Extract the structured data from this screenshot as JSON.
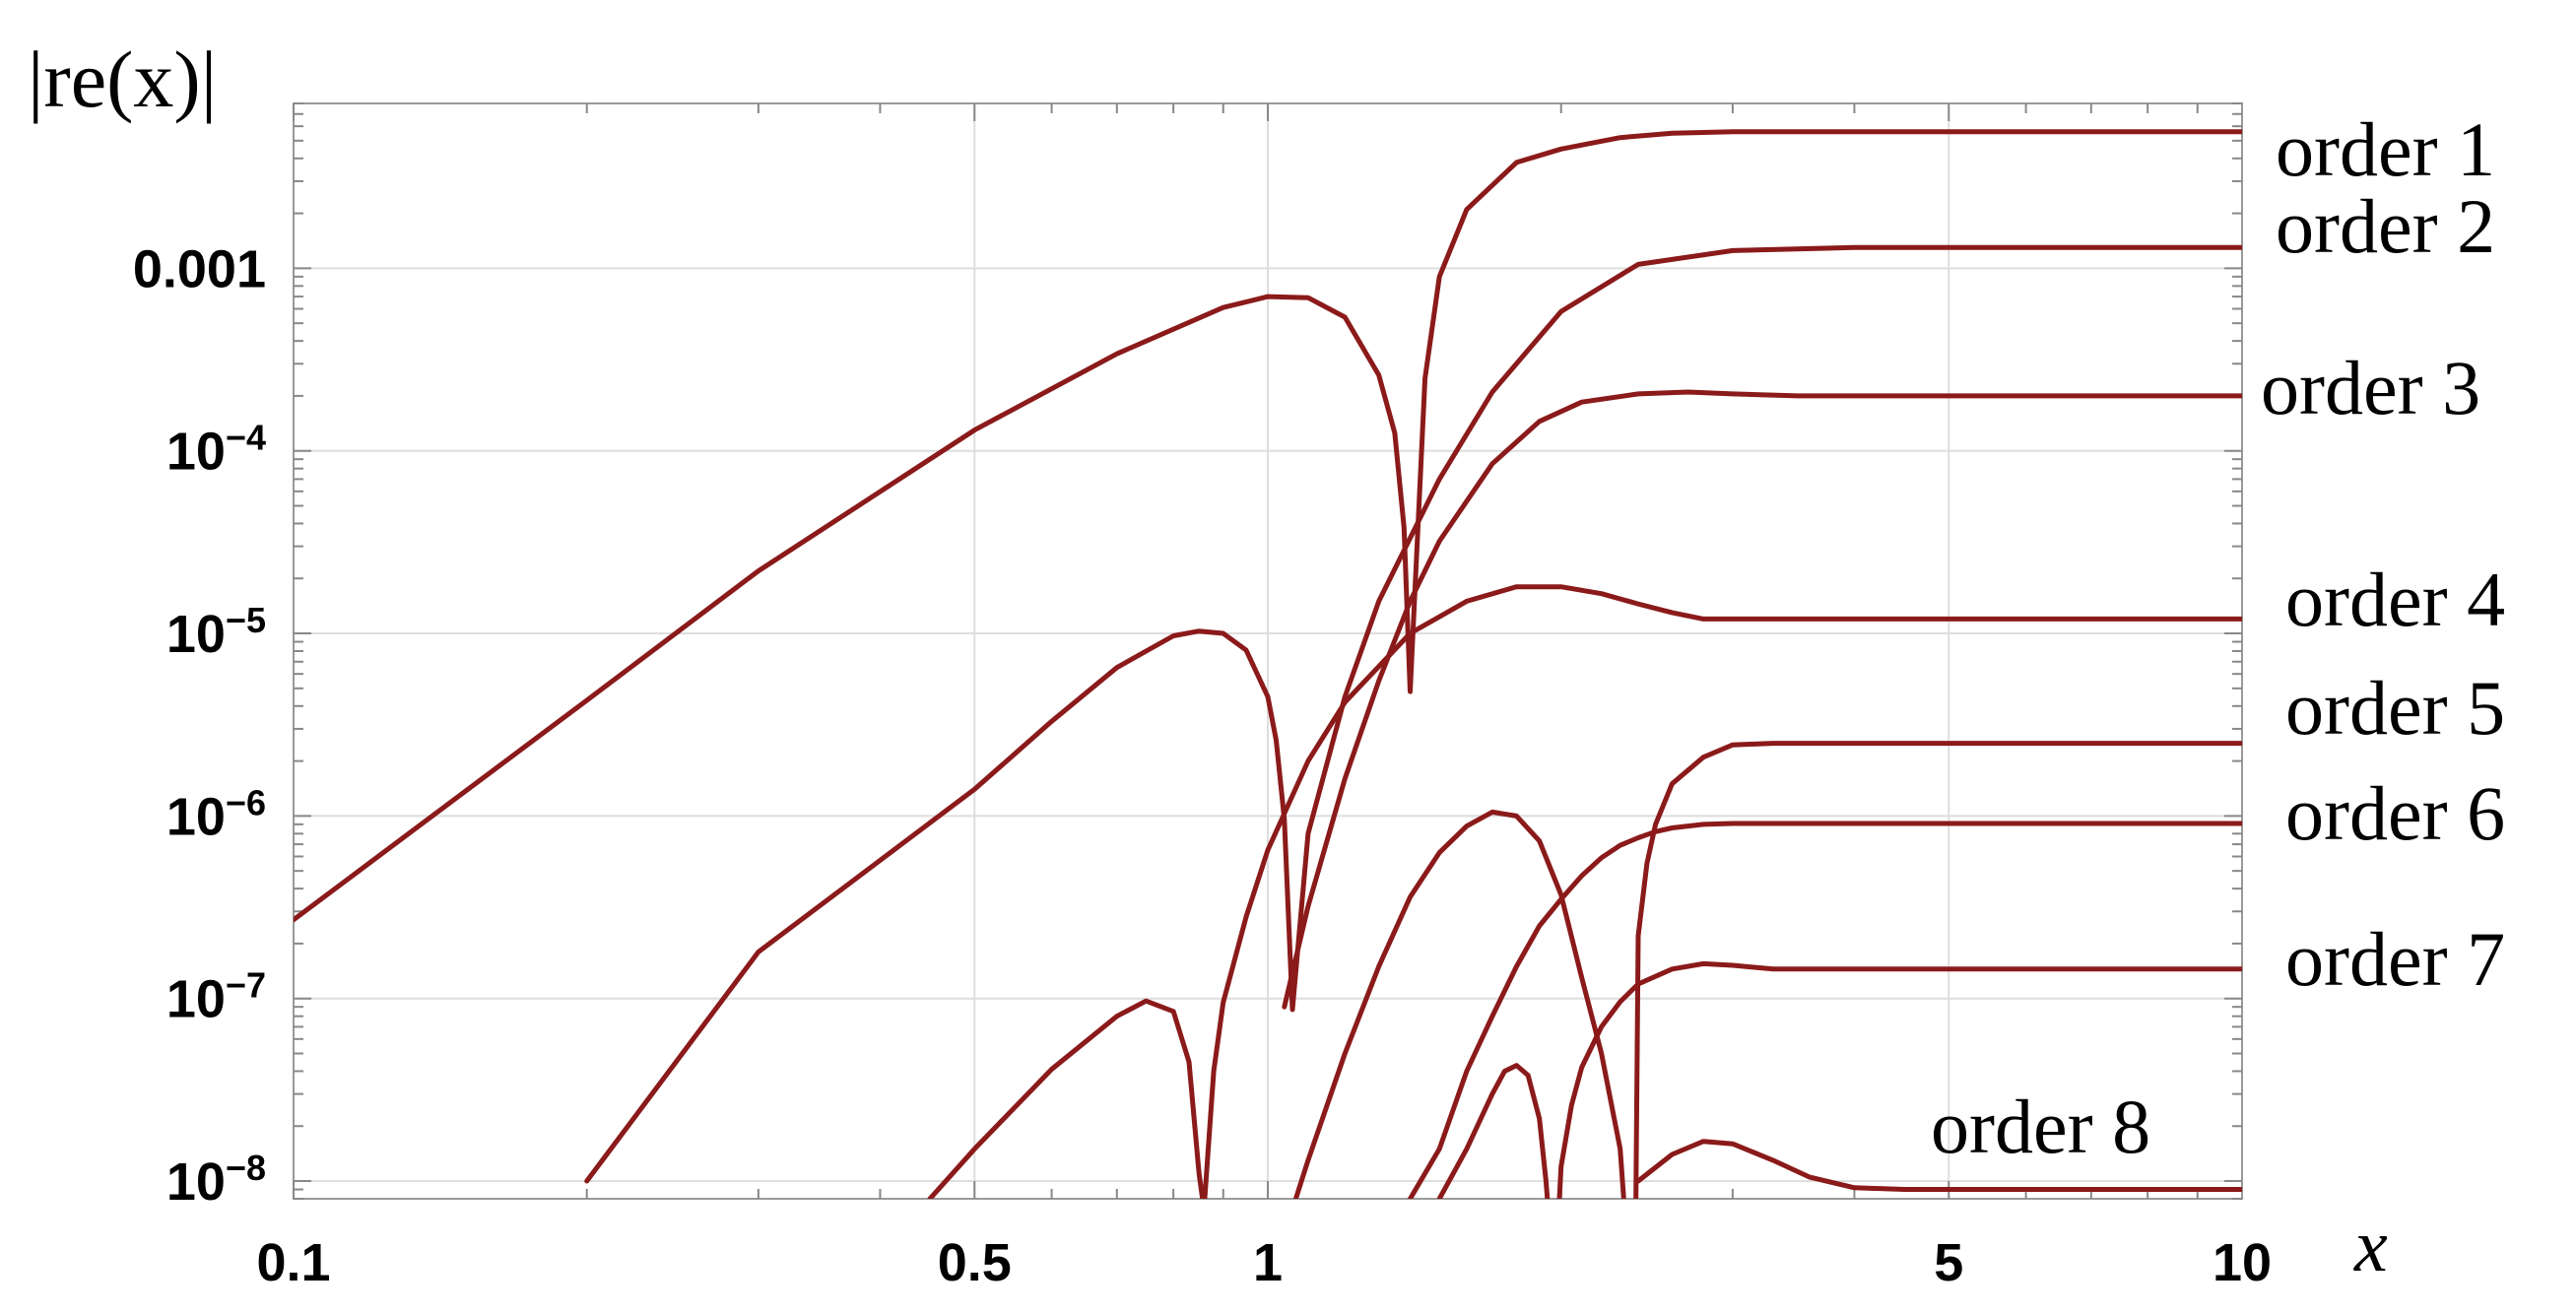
{
  "chart_data": {
    "type": "line",
    "ylabel": "|re(x)|",
    "xlabel": "x",
    "x_scale": "log",
    "y_scale": "log",
    "xlim": [
      0.1,
      10
    ],
    "ylim": [
      8e-09,
      0.008
    ],
    "grid": true,
    "line_color": "#8b1a1a",
    "x_ticks": [
      {
        "value": 0.1,
        "label": "0.1"
      },
      {
        "value": 0.5,
        "label": "0.5"
      },
      {
        "value": 1,
        "label": "1"
      },
      {
        "value": 5,
        "label": "5"
      },
      {
        "value": 10,
        "label": "10"
      }
    ],
    "y_ticks": [
      {
        "value": 0.001,
        "base": "0.001",
        "exp": ""
      },
      {
        "value": 0.0001,
        "base": "10",
        "exp": "−4"
      },
      {
        "value": 1e-05,
        "base": "10",
        "exp": "−5"
      },
      {
        "value": 1e-06,
        "base": "10",
        "exp": "−6"
      },
      {
        "value": 1e-07,
        "base": "10",
        "exp": "−7"
      },
      {
        "value": 1e-08,
        "base": "10",
        "exp": "−8"
      }
    ],
    "series": [
      {
        "name": "order 1",
        "x": [
          0.1,
          0.2,
          0.3,
          0.5,
          0.7,
          0.9,
          1.0,
          1.1,
          1.2,
          1.3,
          1.35,
          1.38,
          1.4,
          1.45,
          1.5,
          1.6,
          1.8,
          2.0,
          2.3,
          2.6,
          3.0,
          4,
          5,
          7,
          10
        ],
        "y": [
          2.7e-07,
          4.3e-06,
          2.2e-05,
          0.00013,
          0.00034,
          0.00061,
          0.0007,
          0.00069,
          0.00054,
          0.00026,
          0.000125,
          3.8e-05,
          4.8e-06,
          0.00025,
          0.0009,
          0.0021,
          0.0038,
          0.0045,
          0.0052,
          0.0055,
          0.0056,
          0.0056,
          0.0056,
          0.0056,
          0.0056
        ]
      },
      {
        "name": "order 2",
        "x": [
          0.2,
          0.3,
          0.5,
          0.6,
          0.7,
          0.8,
          0.85,
          0.9,
          0.95,
          1.0,
          1.02,
          1.04,
          1.06,
          1.1,
          1.2,
          1.3,
          1.5,
          1.7,
          2.0,
          2.4,
          3.0,
          4,
          5,
          7,
          10
        ],
        "y": [
          1e-08,
          1.8e-07,
          1.4e-06,
          3.3e-06,
          6.5e-06,
          9.7e-06,
          1.03e-05,
          1e-05,
          8.1e-06,
          4.5e-06,
          2.6e-06,
          9.6e-07,
          8.7e-08,
          8e-07,
          4.5e-06,
          1.5e-05,
          7e-05,
          0.00021,
          0.00058,
          0.00105,
          0.00125,
          0.0013,
          0.0013,
          0.0013,
          0.0013
        ]
      },
      {
        "name": "order 3",
        "x": [
          1.04,
          1.1,
          1.2,
          1.3,
          1.4,
          1.5,
          1.7,
          1.9,
          2.1,
          2.4,
          2.7,
          3.0,
          3.5,
          4,
          5,
          7,
          10
        ],
        "y": [
          9e-08,
          3.2e-07,
          1.6e-06,
          5.5e-06,
          1.5e-05,
          3.2e-05,
          8.5e-05,
          0.000145,
          0.000185,
          0.000205,
          0.00021,
          0.000205,
          0.0002,
          0.0002,
          0.0002,
          0.0002,
          0.0002
        ]
      },
      {
        "name": "order 4",
        "x": [
          0.45,
          0.5,
          0.6,
          0.7,
          0.75,
          0.8,
          0.83,
          0.85,
          0.86,
          0.88,
          0.9,
          0.95,
          1.0,
          1.1,
          1.2,
          1.4,
          1.6,
          1.8,
          2.0,
          2.2,
          2.4,
          2.6,
          2.8,
          3.0,
          3.3,
          3.6,
          4,
          5,
          7,
          10
        ],
        "y": [
          8e-09,
          1.5e-08,
          4.1e-08,
          8e-08,
          9.7e-08,
          8.5e-08,
          4.5e-08,
          1.1e-08,
          7e-09,
          4e-08,
          9.5e-08,
          2.8e-07,
          6.5e-07,
          2e-06,
          4.2e-06,
          1e-05,
          1.5e-05,
          1.8e-05,
          1.8e-05,
          1.65e-05,
          1.45e-05,
          1.3e-05,
          1.2e-05,
          1.2e-05,
          1.2e-05,
          1.2e-05,
          1.2e-05,
          1.2e-05,
          1.2e-05,
          1.2e-05
        ]
      },
      {
        "name": "order 5",
        "x": [
          1.06,
          1.1,
          1.2,
          1.3,
          1.4,
          1.5,
          1.6,
          1.7,
          1.8,
          1.9,
          2.0,
          2.1,
          2.2,
          2.3,
          2.35,
          2.38,
          2.4,
          2.45,
          2.5,
          2.6,
          2.8,
          3.0,
          3.3,
          4,
          5,
          7,
          10
        ],
        "y": [
          7e-09,
          1.3e-08,
          5e-08,
          1.5e-07,
          3.6e-07,
          6.3e-07,
          8.8e-07,
          1.05e-06,
          1e-06,
          7.3e-07,
          3.7e-07,
          1.3e-07,
          5e-08,
          1.5e-08,
          3e-09,
          1.3e-09,
          2.2e-07,
          5.5e-07,
          9e-07,
          1.5e-06,
          2.1e-06,
          2.45e-06,
          2.5e-06,
          2.5e-06,
          2.5e-06,
          2.5e-06,
          2.5e-06
        ]
      },
      {
        "name": "order 6",
        "x": [
          1.4,
          1.5,
          1.6,
          1.7,
          1.8,
          1.9,
          2.0,
          2.1,
          2.2,
          2.3,
          2.4,
          2.5,
          2.6,
          2.8,
          3.0,
          3.3,
          3.6,
          4,
          5,
          7,
          10
        ],
        "y": [
          8e-09,
          1.5e-08,
          4e-08,
          8e-08,
          1.5e-07,
          2.5e-07,
          3.5e-07,
          4.7e-07,
          5.9e-07,
          6.9e-07,
          7.6e-07,
          8.2e-07,
          8.6e-07,
          9e-07,
          9.1e-07,
          9.1e-07,
          9.1e-07,
          9.1e-07,
          9.1e-07,
          9.1e-07,
          9.1e-07
        ]
      },
      {
        "name": "order 7",
        "x": [
          1.5,
          1.6,
          1.7,
          1.75,
          1.8,
          1.85,
          1.9,
          1.93,
          1.95,
          1.97,
          2.0,
          2.05,
          2.1,
          2.2,
          2.3,
          2.4,
          2.6,
          2.8,
          3.0,
          3.3,
          3.6,
          4,
          5,
          7,
          10
        ],
        "y": [
          8e-09,
          1.5e-08,
          3e-08,
          4e-08,
          4.3e-08,
          3.8e-08,
          2.2e-08,
          1e-08,
          5e-09,
          2.5e-09,
          1.2e-08,
          2.6e-08,
          4.2e-08,
          7e-08,
          9.6e-08,
          1.2e-07,
          1.45e-07,
          1.55e-07,
          1.52e-07,
          1.45e-07,
          1.45e-07,
          1.45e-07,
          1.45e-07,
          1.45e-07,
          1.45e-07
        ]
      },
      {
        "name": "order 8",
        "x": [
          2.4,
          2.6,
          2.8,
          3.0,
          3.3,
          3.6,
          4.0,
          4.5,
          5,
          7,
          10
        ],
        "y": [
          1e-08,
          1.4e-08,
          1.65e-08,
          1.6e-08,
          1.3e-08,
          1.05e-08,
          9.2e-09,
          9e-09,
          9e-09,
          9e-09,
          9e-09
        ]
      }
    ]
  }
}
